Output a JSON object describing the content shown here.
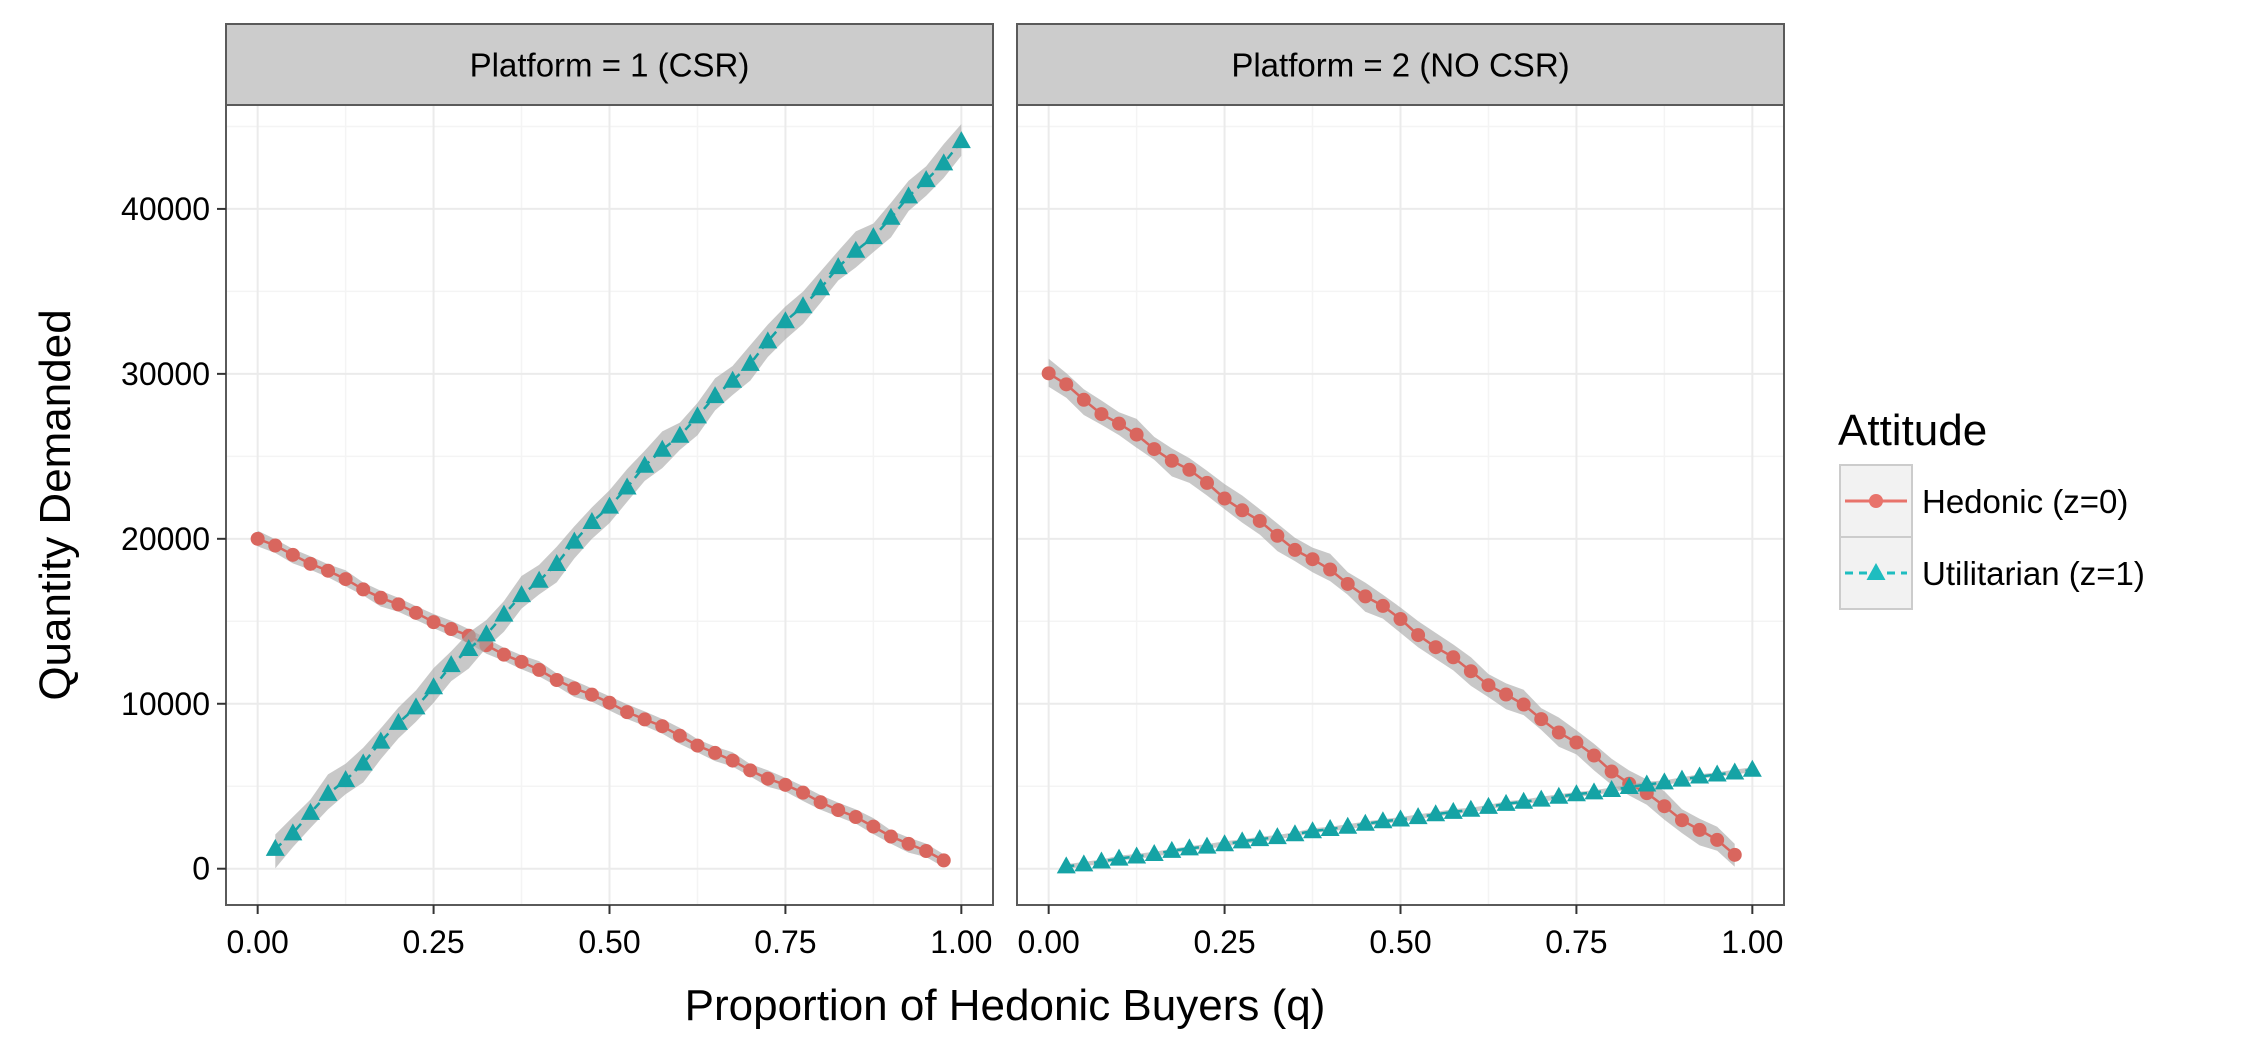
{
  "chart_data": {
    "type": "line",
    "xlabel": "Proportion of Hedonic Buyers (q)",
    "ylabel": "Quantity Demanded",
    "xlim": [
      -0.045,
      1.045
    ],
    "ylim": [
      -2200,
      46300
    ],
    "x_ticks": [
      0,
      0.25,
      0.5,
      0.75,
      1
    ],
    "x_tick_labels": [
      "0.00",
      "0.25",
      "0.50",
      "0.75",
      "1.00"
    ],
    "y_ticks": [
      0,
      10000,
      20000,
      30000,
      40000
    ],
    "y_tick_labels": [
      "0",
      "10000",
      "20000",
      "30000",
      "40000"
    ],
    "grid": true,
    "confidence_band": true,
    "legend": {
      "title": "Attitude",
      "position": "right",
      "entries": [
        {
          "name": "Hedonic (z=0)",
          "color": "#e8736b",
          "marker": "circle",
          "line": "solid"
        },
        {
          "name": "Utilitarian (z=1)",
          "color": "#1ebdc0",
          "marker": "triangle",
          "line": "dashed"
        }
      ]
    },
    "panels": [
      {
        "strip_label": "Platform = 1 (CSR)",
        "series": [
          {
            "name": "Hedonic (z=0)",
            "x_start": 0.0,
            "x_end": 0.975,
            "y_start": 20000,
            "y_end": 550,
            "band": 450
          },
          {
            "name": "Utilitarian (z=1)",
            "x_start": 0.025,
            "x_end": 1.0,
            "y_start": 1100,
            "y_end": 44000,
            "band": 1000
          }
        ]
      },
      {
        "strip_label": "Platform = 2 (NO CSR)",
        "series": [
          {
            "name": "Hedonic (z=0)",
            "x_start": 0.0,
            "x_end": 0.975,
            "y_start": 30000,
            "y_end": 800,
            "band": 800
          },
          {
            "name": "Utilitarian (z=1)",
            "x_start": 0.025,
            "x_end": 1.0,
            "y_start": 150,
            "y_end": 6000,
            "band": 150
          }
        ]
      }
    ],
    "n_points": 40,
    "colors": {
      "hedonic_marker": "#d9665e",
      "utilitarian_marker": "#15a3a5",
      "band": "#a6a6a6",
      "panel_border": "#5a5a5a",
      "grid": "#ebebeb",
      "strip_fill": "#cccccc"
    }
  }
}
